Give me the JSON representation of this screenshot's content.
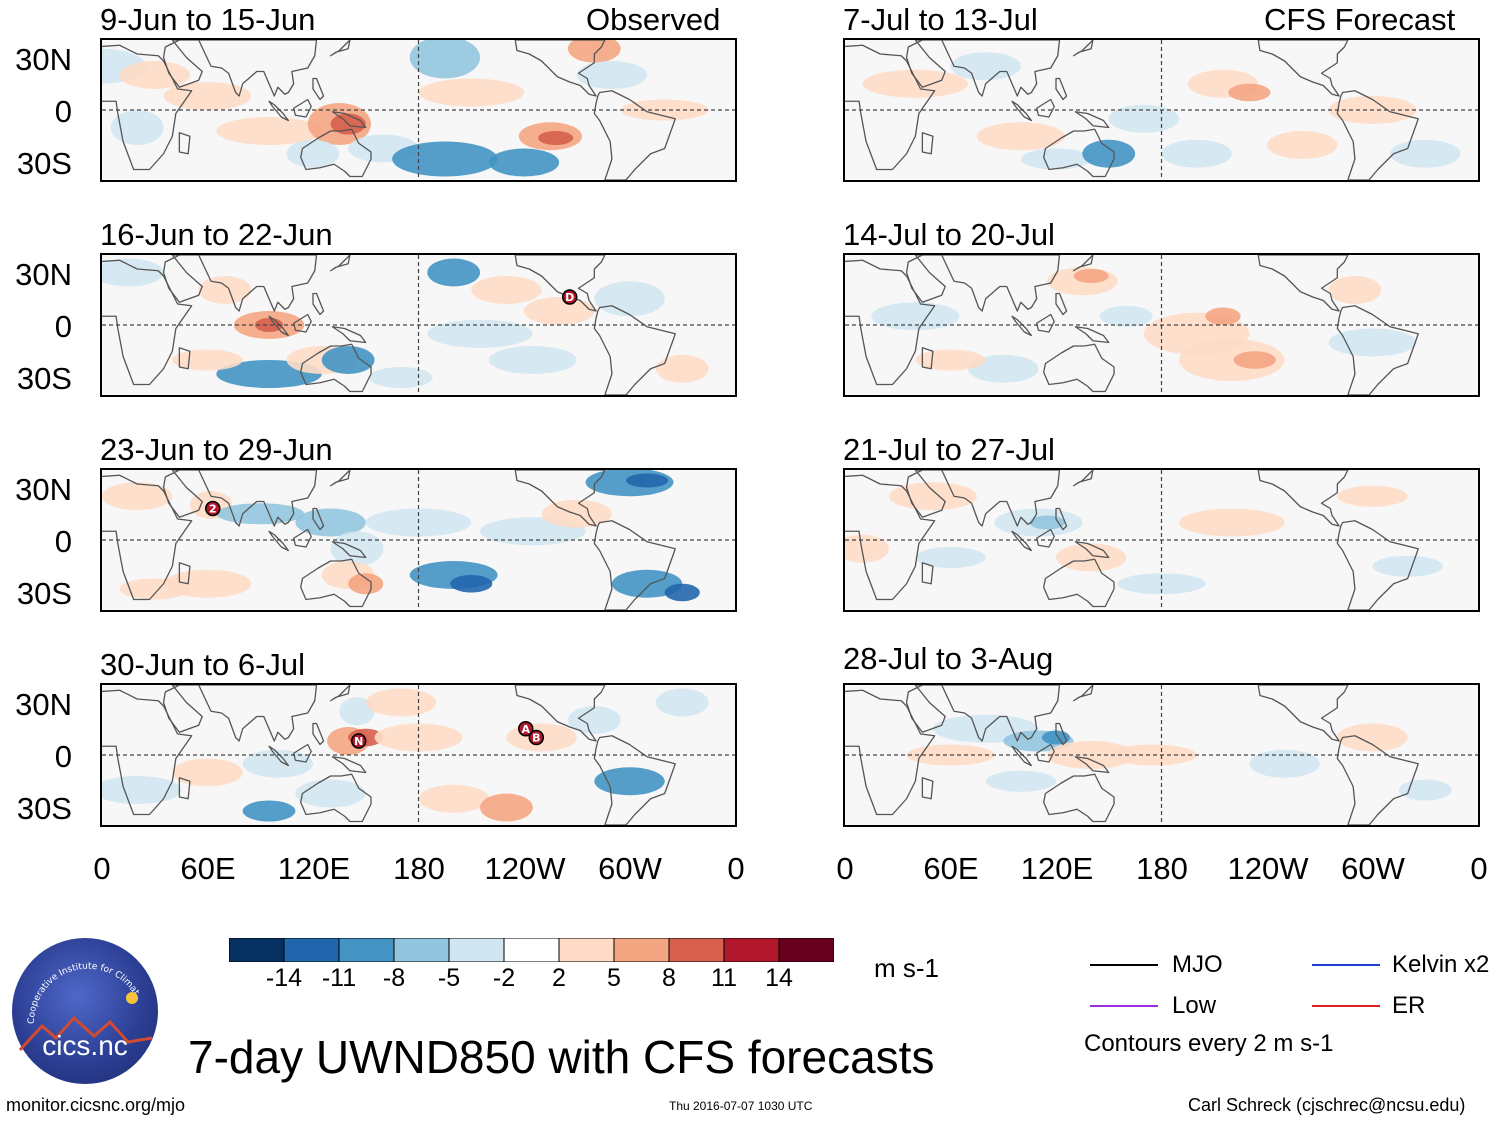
{
  "figure": {
    "title": "7-day UWND850 with CFS forecasts",
    "source_url": "monitor.cicsnc.org/mjo",
    "timestamp": "Thu 2016-07-07 1030 UTC",
    "author": "Carl Schreck (cjschrec@ncsu.edu)",
    "logo_text": "cics.nc",
    "logo_arc_text": "Cooperative Institute for Climate and Satellites"
  },
  "columns": {
    "left_header": "Observed",
    "right_header": "CFS Forecast"
  },
  "panels_left": [
    {
      "title": "9-Jun to 15-Jun",
      "storms": []
    },
    {
      "title": "16-Jun to 22-Jun",
      "storms": [
        {
          "label": "D",
          "lon": 266,
          "lat": 16
        }
      ]
    },
    {
      "title": "23-Jun to 29-Jun",
      "storms": [
        {
          "label": "2",
          "lon": 63,
          "lat": 18
        }
      ]
    },
    {
      "title": "30-Jun to 6-Jul",
      "storms": [
        {
          "label": "N",
          "lon": 146,
          "lat": 8
        },
        {
          "label": "A",
          "lon": 241,
          "lat": 15
        },
        {
          "label": "B",
          "lon": 247,
          "lat": 10
        }
      ]
    }
  ],
  "panels_right": [
    {
      "title": "7-Jul to 13-Jul",
      "storms": []
    },
    {
      "title": "14-Jul to 20-Jul",
      "storms": []
    },
    {
      "title": "21-Jul to 27-Jul",
      "storms": []
    },
    {
      "title": "28-Jul to 3-Aug",
      "storms": []
    }
  ],
  "axes": {
    "y_ticks": [
      "30N",
      "0",
      "30S"
    ],
    "x_ticks": [
      "0",
      "60E",
      "120E",
      "180",
      "120W",
      "60W",
      "0"
    ]
  },
  "colorbar": {
    "units": "m s-1",
    "labels": [
      "-14",
      "-11",
      "-8",
      "-5",
      "-2",
      "2",
      "5",
      "8",
      "11",
      "14"
    ],
    "colors": [
      "#053061",
      "#2166ac",
      "#4393c3",
      "#92c5de",
      "#d1e5f0",
      "#ffffff",
      "#fddbc7",
      "#f4a582",
      "#d6604d",
      "#b2182b",
      "#67001f"
    ]
  },
  "legend": {
    "items": [
      {
        "label": "MJO",
        "color": "#000000"
      },
      {
        "label": "Kelvin x2",
        "color": "#1f3fd6"
      },
      {
        "label": "Low",
        "color": "#9b30e0"
      },
      {
        "label": "ER",
        "color": "#e02020"
      }
    ],
    "contour_note": "Contours every 2 m s-1"
  }
}
